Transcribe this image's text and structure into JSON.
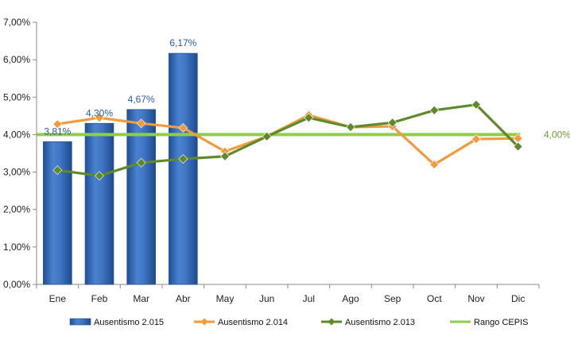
{
  "chart_data": {
    "type": "bar",
    "categories": [
      "Ene",
      "Feb",
      "Mar",
      "Abr",
      "May",
      "Jun",
      "Jul",
      "Ago",
      "Sep",
      "Oct",
      "Nov",
      "Dic"
    ],
    "ylim": [
      0,
      7
    ],
    "yticks": [
      0,
      1,
      2,
      3,
      4,
      5,
      6,
      7
    ],
    "ytick_labels": [
      "0,00%",
      "1,00%",
      "2,00%",
      "3,00%",
      "4,00%",
      "5,00%",
      "6,00%",
      "7,00%"
    ],
    "grid": false,
    "legend_position": "bottom",
    "series": [
      {
        "name": "Ausentismo 2.015",
        "type": "bar",
        "color": "#3a6fba",
        "values": [
          3.81,
          4.3,
          4.67,
          6.17,
          null,
          null,
          null,
          null,
          null,
          null,
          null,
          null
        ],
        "labels": [
          "3,81%",
          "4,30%",
          "4,67%",
          "6,17%"
        ]
      },
      {
        "name": "Ausentismo 2.014",
        "type": "line",
        "marker": "diamond",
        "color": "#f39a3c",
        "values": [
          4.28,
          4.45,
          4.3,
          4.18,
          3.55,
          3.95,
          4.52,
          4.2,
          4.22,
          3.2,
          3.88,
          3.9
        ]
      },
      {
        "name": "Ausentismo 2.013",
        "type": "line",
        "marker": "diamond",
        "color": "#5f8a2c",
        "values": [
          3.05,
          2.9,
          3.25,
          3.35,
          3.42,
          3.95,
          4.45,
          4.2,
          4.32,
          4.65,
          4.8,
          3.68
        ]
      },
      {
        "name": "Rango CEPIS",
        "type": "line",
        "color": "#8fce4a",
        "values": [
          4.0,
          4.0,
          4.0,
          4.0,
          4.0,
          4.0,
          4.0,
          4.0,
          4.0,
          4.0,
          4.0,
          4.0
        ],
        "end_label": "4,00%"
      }
    ]
  }
}
